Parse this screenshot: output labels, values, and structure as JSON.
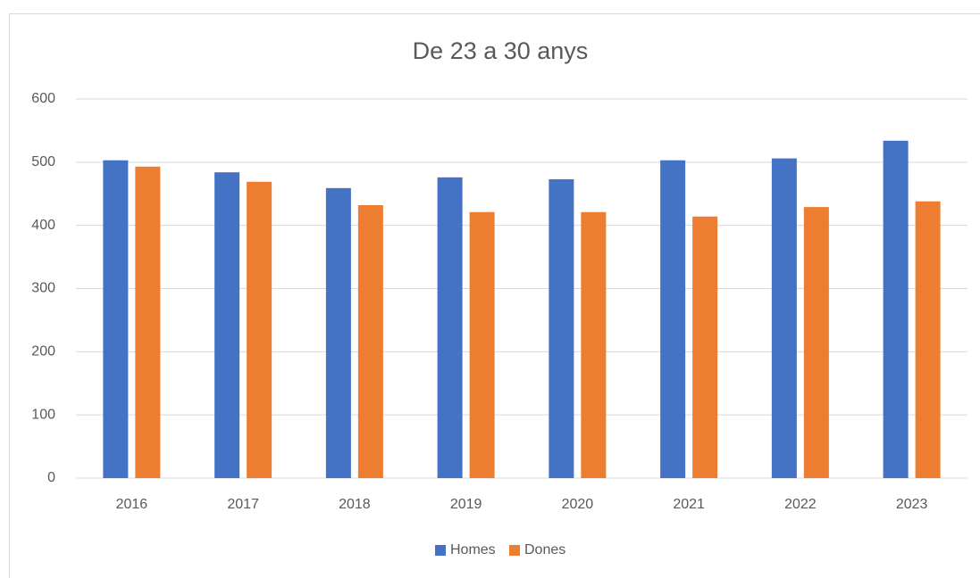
{
  "chart_data": {
    "type": "bar",
    "title": "De 23 a 30 anys",
    "categories": [
      "2016",
      "2017",
      "2018",
      "2019",
      "2020",
      "2021",
      "2022",
      "2023"
    ],
    "series": [
      {
        "name": "Homes",
        "color": "#4472c4",
        "values": [
          503,
          484,
          459,
          476,
          473,
          503,
          506,
          534
        ]
      },
      {
        "name": "Dones",
        "color": "#ed7d31",
        "values": [
          493,
          469,
          432,
          421,
          421,
          414,
          429,
          438
        ]
      }
    ],
    "ylim": [
      0,
      600
    ],
    "yticks": [
      0,
      100,
      200,
      300,
      400,
      500,
      600
    ],
    "grid": true,
    "legend": "bottom"
  }
}
